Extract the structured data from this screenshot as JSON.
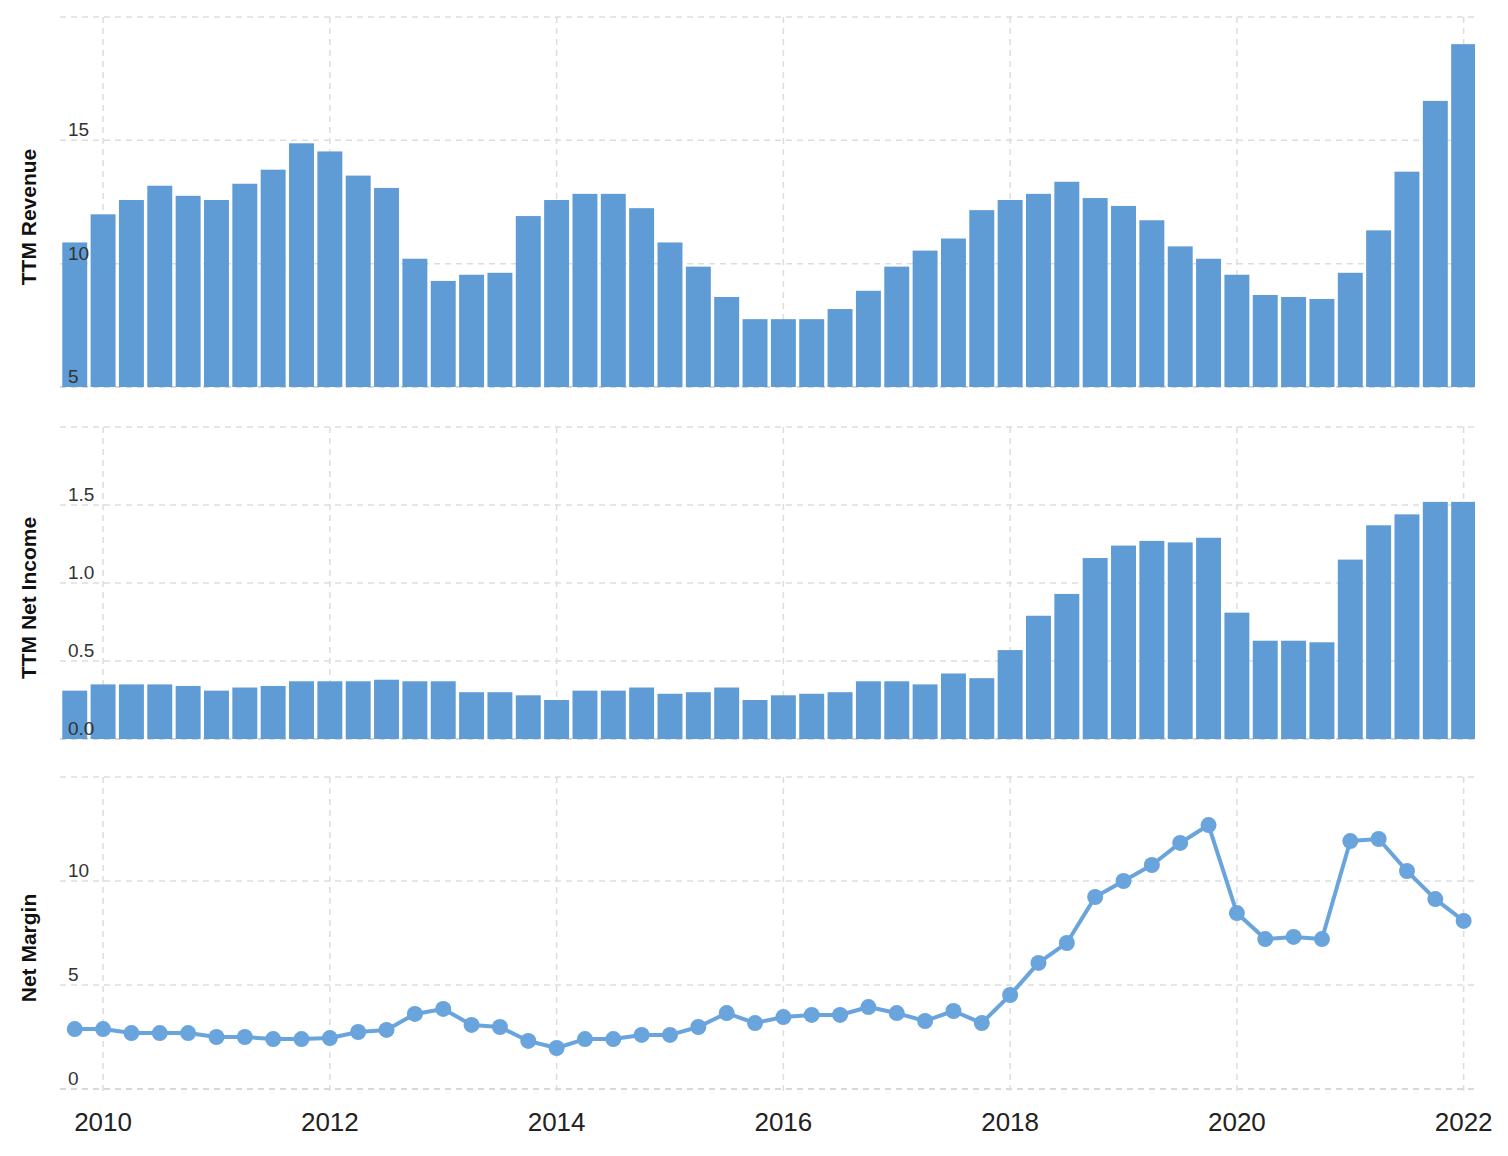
{
  "chart_data": [
    {
      "type": "bar",
      "ylabel": "TTM Revenue",
      "color": "#5f9bd4",
      "grid": true,
      "tick_labels": "y",
      "xlim": [
        2009.62,
        2022.1
      ],
      "xticks": [
        2010,
        2012,
        2014,
        2016,
        2018,
        2020,
        2022
      ],
      "ylim": [
        5,
        20
      ],
      "yticks": [
        5,
        10,
        15
      ],
      "x": [
        2009.75,
        2010,
        2010.25,
        2010.5,
        2010.75,
        2011,
        2011.25,
        2011.5,
        2011.75,
        2012,
        2012.25,
        2012.5,
        2012.75,
        2013,
        2013.25,
        2013.5,
        2013.75,
        2014,
        2014.25,
        2014.5,
        2014.75,
        2015,
        2015.25,
        2015.5,
        2015.75,
        2016,
        2016.25,
        2016.5,
        2016.75,
        2017,
        2017.25,
        2017.5,
        2017.75,
        2018,
        2018.25,
        2018.5,
        2018.75,
        2019,
        2019.25,
        2019.5,
        2019.75,
        2020,
        2020.25,
        2020.5,
        2020.75,
        2021,
        2021.25,
        2021.5,
        2021.75,
        2022
      ],
      "values": [
        10.86,
        12.0,
        12.58,
        13.16,
        12.75,
        12.58,
        13.24,
        13.81,
        14.88,
        14.55,
        13.57,
        13.07,
        10.2,
        9.3,
        9.55,
        9.63,
        11.93,
        12.58,
        12.83,
        12.83,
        12.25,
        10.86,
        9.88,
        8.65,
        7.75,
        7.75,
        7.75,
        8.16,
        8.9,
        9.88,
        10.53,
        11.02,
        12.17,
        12.58,
        12.83,
        13.32,
        12.66,
        12.34,
        11.76,
        10.7,
        10.2,
        9.55,
        8.73,
        8.65,
        8.57,
        9.63,
        11.35,
        13.73,
        16.6,
        18.9
      ]
    },
    {
      "type": "bar",
      "ylabel": "TTM Net Income",
      "color": "#5f9bd4",
      "grid": true,
      "tick_labels": "y",
      "xlim": [
        2009.62,
        2022.1
      ],
      "xticks": [
        2010,
        2012,
        2014,
        2016,
        2018,
        2020,
        2022
      ],
      "ylim": [
        0,
        2
      ],
      "yticks": [
        {
          "value": 0,
          "label": "0.0"
        },
        0.5,
        {
          "value": 1,
          "label": "1.0"
        },
        1.5
      ],
      "x": [
        2009.75,
        2010,
        2010.25,
        2010.5,
        2010.75,
        2011,
        2011.25,
        2011.5,
        2011.75,
        2012,
        2012.25,
        2012.5,
        2012.75,
        2013,
        2013.25,
        2013.5,
        2013.75,
        2014,
        2014.25,
        2014.5,
        2014.75,
        2015,
        2015.25,
        2015.5,
        2015.75,
        2016,
        2016.25,
        2016.5,
        2016.75,
        2017,
        2017.25,
        2017.5,
        2017.75,
        2018,
        2018.25,
        2018.5,
        2018.75,
        2019,
        2019.25,
        2019.5,
        2019.75,
        2020,
        2020.25,
        2020.5,
        2020.75,
        2021,
        2021.25,
        2021.5,
        2021.75,
        2022
      ],
      "values": [
        0.31,
        0.35,
        0.35,
        0.35,
        0.34,
        0.31,
        0.33,
        0.34,
        0.37,
        0.37,
        0.37,
        0.38,
        0.37,
        0.37,
        0.3,
        0.3,
        0.28,
        0.25,
        0.31,
        0.31,
        0.33,
        0.29,
        0.3,
        0.33,
        0.25,
        0.28,
        0.29,
        0.3,
        0.37,
        0.37,
        0.35,
        0.42,
        0.39,
        0.57,
        0.79,
        0.93,
        1.16,
        1.24,
        1.27,
        1.26,
        1.29,
        0.81,
        0.63,
        0.63,
        0.62,
        1.15,
        1.37,
        1.44,
        1.52,
        1.52
      ]
    },
    {
      "type": "line",
      "ylabel": "Net Margin",
      "color": "#6aa4dc",
      "marker": "circle",
      "line_style": "solid",
      "grid": true,
      "tick_labels": true,
      "xlim": [
        2009.62,
        2022.1
      ],
      "xticks": [
        2010,
        2012,
        2014,
        2016,
        2018,
        2020,
        2022
      ],
      "ylim": [
        0,
        15
      ],
      "yticks": [
        0,
        5,
        10
      ],
      "x": [
        2009.75,
        2010,
        2010.25,
        2010.5,
        2010.75,
        2011,
        2011.25,
        2011.5,
        2011.75,
        2012,
        2012.25,
        2012.5,
        2012.75,
        2013,
        2013.25,
        2013.5,
        2013.75,
        2014,
        2014.25,
        2014.5,
        2014.75,
        2015,
        2015.25,
        2015.5,
        2015.75,
        2016,
        2016.25,
        2016.5,
        2016.75,
        2017,
        2017.25,
        2017.5,
        2017.75,
        2018,
        2018.25,
        2018.5,
        2018.75,
        2019,
        2019.25,
        2019.5,
        2019.75,
        2020,
        2020.25,
        2020.5,
        2020.75,
        2021,
        2021.25,
        2021.5,
        2021.75,
        2022
      ],
      "values": [
        2.88,
        2.88,
        2.69,
        2.69,
        2.69,
        2.5,
        2.5,
        2.4,
        2.4,
        2.45,
        2.74,
        2.84,
        3.61,
        3.85,
        3.08,
        2.98,
        2.31,
        1.97,
        2.4,
        2.4,
        2.6,
        2.6,
        2.98,
        3.65,
        3.17,
        3.46,
        3.56,
        3.56,
        3.94,
        3.65,
        3.27,
        3.75,
        3.17,
        4.52,
        6.06,
        7.02,
        9.23,
        10.0,
        10.77,
        11.83,
        12.69,
        8.46,
        7.21,
        7.31,
        7.21,
        11.92,
        12.02,
        10.48,
        9.13,
        8.08
      ]
    }
  ]
}
